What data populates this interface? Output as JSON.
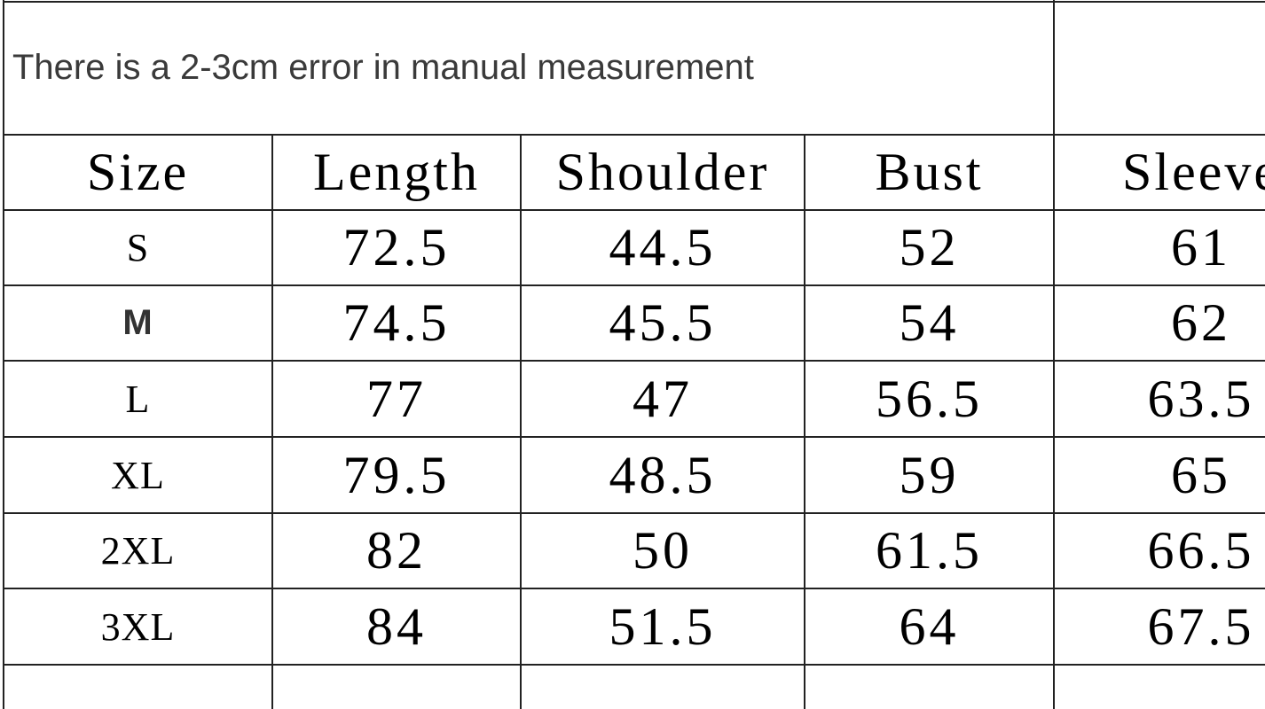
{
  "note": "There is a 2-3cm error in manual measurement",
  "table": {
    "headers": [
      "Size",
      "Length",
      "Shoulder",
      "Bust",
      "Sleeve"
    ],
    "rows": [
      [
        "S",
        "72.5",
        "44.5",
        "52",
        "61"
      ],
      [
        "M",
        "74.5",
        "45.5",
        "54",
        "62"
      ],
      [
        "L",
        "77",
        "47",
        "56.5",
        "63.5"
      ],
      [
        "XL",
        "79.5",
        "48.5",
        "59",
        "65"
      ],
      [
        "2XL",
        "82",
        "50",
        "61.5",
        "66.5"
      ],
      [
        "3XL",
        "84",
        "51.5",
        "64",
        "67.5"
      ]
    ]
  }
}
